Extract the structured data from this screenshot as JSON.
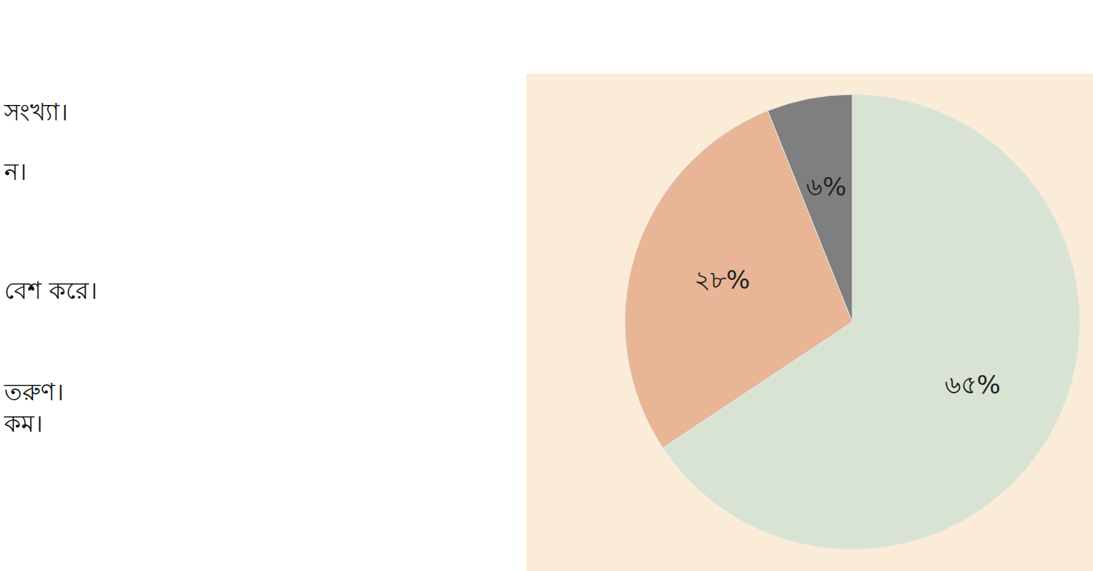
{
  "chart_data": {
    "type": "pie",
    "values": [
      65,
      28,
      6
    ],
    "value_labels": [
      "৬৫%",
      "২৮%",
      "৬%"
    ],
    "colors": [
      "#d9e3d3",
      "#e8b597",
      "#7f7f7f"
    ],
    "data_labels": true,
    "annotations": [
      "সংখ্যা।",
      "ন।",
      "বেশ করে।",
      "তরুণ।",
      "কম।"
    ]
  }
}
